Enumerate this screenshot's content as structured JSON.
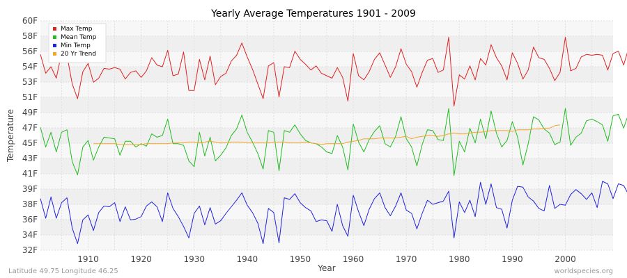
{
  "chart_data": {
    "type": "line",
    "title": "Yearly Average Temperatures 1901 - 2009",
    "xlabel": "Year",
    "ylabel": "Temperature",
    "xlim": [
      1901,
      2009
    ],
    "ylim": [
      32,
      60
    ],
    "y_ticks": [
      "32F",
      "34F",
      "36F",
      "38F",
      "39F",
      "41F",
      "43F",
      "45F",
      "47F",
      "49F",
      "51F",
      "53F",
      "54F",
      "56F",
      "58F",
      "60F"
    ],
    "x_ticks": [
      1910,
      1920,
      1930,
      1940,
      1950,
      1960,
      1970,
      1980,
      1990,
      2000
    ],
    "grid": true,
    "legend": "top-left",
    "series": [
      {
        "name": "Max Temp",
        "color": "#dd2222",
        "start_year": 1901,
        "values": [
          55.9,
          53.6,
          54.4,
          53.0,
          56.1,
          55.8,
          52.3,
          50.5,
          53.8,
          54.8,
          52.5,
          53.0,
          54.2,
          54.1,
          54.3,
          54.1,
          52.9,
          53.7,
          53.9,
          53.1,
          53.9,
          55.5,
          54.6,
          54.4,
          56.4,
          53.3,
          53.5,
          56.2,
          51.5,
          51.5,
          55.3,
          52.8,
          55.7,
          52.2,
          53.2,
          53.6,
          55.1,
          55.8,
          57.3,
          55.6,
          54.1,
          52.3,
          50.5,
          54.5,
          54.9,
          50.7,
          54.4,
          54.3,
          56.3,
          55.3,
          54.7,
          54.0,
          54.5,
          53.6,
          53.3,
          53.0,
          54.3,
          53.1,
          50.2,
          56.0,
          53.3,
          52.8,
          53.8,
          55.3,
          56.1,
          54.6,
          53.1,
          54.4,
          56.6,
          54.7,
          53.8,
          51.9,
          53.7,
          55.2,
          55.4,
          53.7,
          54.0,
          58.0,
          49.6,
          53.4,
          52.9,
          54.5,
          52.8,
          55.4,
          54.6,
          57.1,
          55.5,
          54.5,
          52.8,
          56.1,
          54.8,
          52.9,
          54.0,
          56.8,
          55.5,
          55.3,
          54.2,
          52.7,
          53.7,
          58.0,
          53.9,
          54.2,
          55.6,
          55.9,
          55.8,
          55.9,
          55.8,
          54.0,
          56.0,
          56.3,
          54.6,
          56.8,
          56.5,
          55.6
        ]
      },
      {
        "name": "Mean Temp",
        "color": "#22bb22",
        "start_year": 1901,
        "values": [
          47.0,
          44.6,
          46.4,
          44.0,
          46.4,
          46.7,
          42.8,
          41.2,
          44.6,
          45.4,
          43.0,
          44.6,
          45.8,
          45.7,
          45.6,
          43.6,
          45.3,
          45.3,
          44.6,
          45.0,
          44.7,
          46.2,
          45.8,
          46.0,
          48.0,
          45.0,
          45.0,
          44.8,
          42.9,
          42.2,
          46.4,
          43.5,
          45.8,
          42.9,
          43.6,
          44.5,
          46.0,
          46.8,
          48.5,
          46.4,
          45.2,
          43.8,
          41.9,
          46.6,
          46.4,
          41.7,
          46.6,
          46.4,
          47.3,
          46.2,
          45.4,
          45.1,
          45.0,
          44.6,
          44.0,
          43.8,
          46.0,
          44.6,
          41.8,
          47.4,
          45.2,
          44.0,
          45.5,
          46.5,
          47.2,
          45.0,
          44.6,
          45.9,
          48.3,
          45.6,
          44.6,
          42.3,
          44.9,
          46.7,
          46.6,
          45.5,
          45.4,
          49.3,
          41.1,
          45.3,
          44.0,
          46.9,
          45.1,
          48.0,
          45.6,
          49.0,
          46.3,
          44.6,
          45.4,
          47.7,
          45.8,
          42.4,
          45.0,
          48.3,
          47.9,
          46.8,
          46.3,
          44.9,
          45.2,
          49.3,
          44.8,
          45.8,
          46.3,
          47.8,
          48.0,
          47.7,
          47.3,
          45.3,
          48.4,
          48.6,
          46.9,
          48.8,
          48.6,
          47.5
        ]
      },
      {
        "name": "Min Temp",
        "color": "#2222dd",
        "start_year": 1901,
        "values": [
          38.3,
          35.9,
          38.5,
          35.9,
          37.8,
          38.4,
          34.7,
          32.8,
          35.7,
          36.3,
          34.4,
          36.6,
          37.4,
          37.3,
          37.8,
          35.5,
          37.3,
          35.7,
          35.8,
          36.1,
          37.4,
          37.9,
          37.3,
          35.5,
          39.0,
          37.1,
          36.1,
          34.9,
          33.5,
          36.5,
          37.4,
          35.1,
          37.2,
          35.2,
          35.6,
          36.5,
          37.3,
          38.1,
          39.0,
          37.5,
          36.6,
          35.3,
          32.8,
          37.1,
          36.6,
          32.9,
          38.4,
          38.2,
          38.9,
          37.8,
          37.2,
          36.8,
          35.5,
          35.7,
          35.6,
          34.3,
          37.6,
          35.0,
          33.7,
          38.7,
          36.7,
          35.0,
          37.0,
          38.3,
          39.0,
          37.2,
          36.2,
          37.4,
          39.0,
          36.9,
          36.5,
          34.6,
          36.5,
          38.1,
          37.6,
          37.8,
          38.0,
          39.2,
          33.5,
          37.9,
          36.6,
          38.1,
          36.1,
          40.3,
          37.6,
          40.1,
          37.2,
          37.0,
          34.7,
          38.1,
          39.8,
          39.7,
          38.5,
          38.0,
          37.1,
          36.8,
          39.9,
          37.1,
          37.6,
          37.5,
          38.8,
          39.4,
          38.9,
          38.2,
          39.0,
          37.2,
          40.4,
          40.1,
          38.3,
          40.1,
          39.9,
          38.7
        ]
      },
      {
        "name": "20 Yr Trend",
        "color": "#f5a623",
        "start_year": 1911,
        "values": [
          45.0,
          45.0,
          45.0,
          45.0,
          45.0,
          44.9,
          44.9,
          44.9,
          44.9,
          44.9,
          45.0,
          45.0,
          45.0,
          45.0,
          45.0,
          45.1,
          45.1,
          45.1,
          45.2,
          45.2,
          45.1,
          45.2,
          45.3,
          45.2,
          45.1,
          45.1,
          45.2,
          45.2,
          45.2,
          45.1,
          45.1,
          45.1,
          45.1,
          45.1,
          45.2,
          45.2,
          45.2,
          45.1,
          45.1,
          45.1,
          45.2,
          45.1,
          45.0,
          44.9,
          45.0,
          45.0,
          45.0,
          45.0,
          45.2,
          45.3,
          45.4,
          45.6,
          45.6,
          45.6,
          45.7,
          45.7,
          45.7,
          45.7,
          45.8,
          45.9,
          45.6,
          45.8,
          45.9,
          46.0,
          46.0,
          45.9,
          46.0,
          46.2,
          46.3,
          46.2,
          46.2,
          46.3,
          46.4,
          46.4,
          46.5,
          46.6,
          46.6,
          46.6,
          46.6,
          46.5,
          46.7,
          46.7,
          46.7,
          46.8,
          46.8,
          46.9,
          46.9,
          47.2,
          47.3
        ]
      }
    ]
  },
  "footer": {
    "location": "Latitude 49.75 Longitude 46.25",
    "source": "worldspecies.org"
  }
}
